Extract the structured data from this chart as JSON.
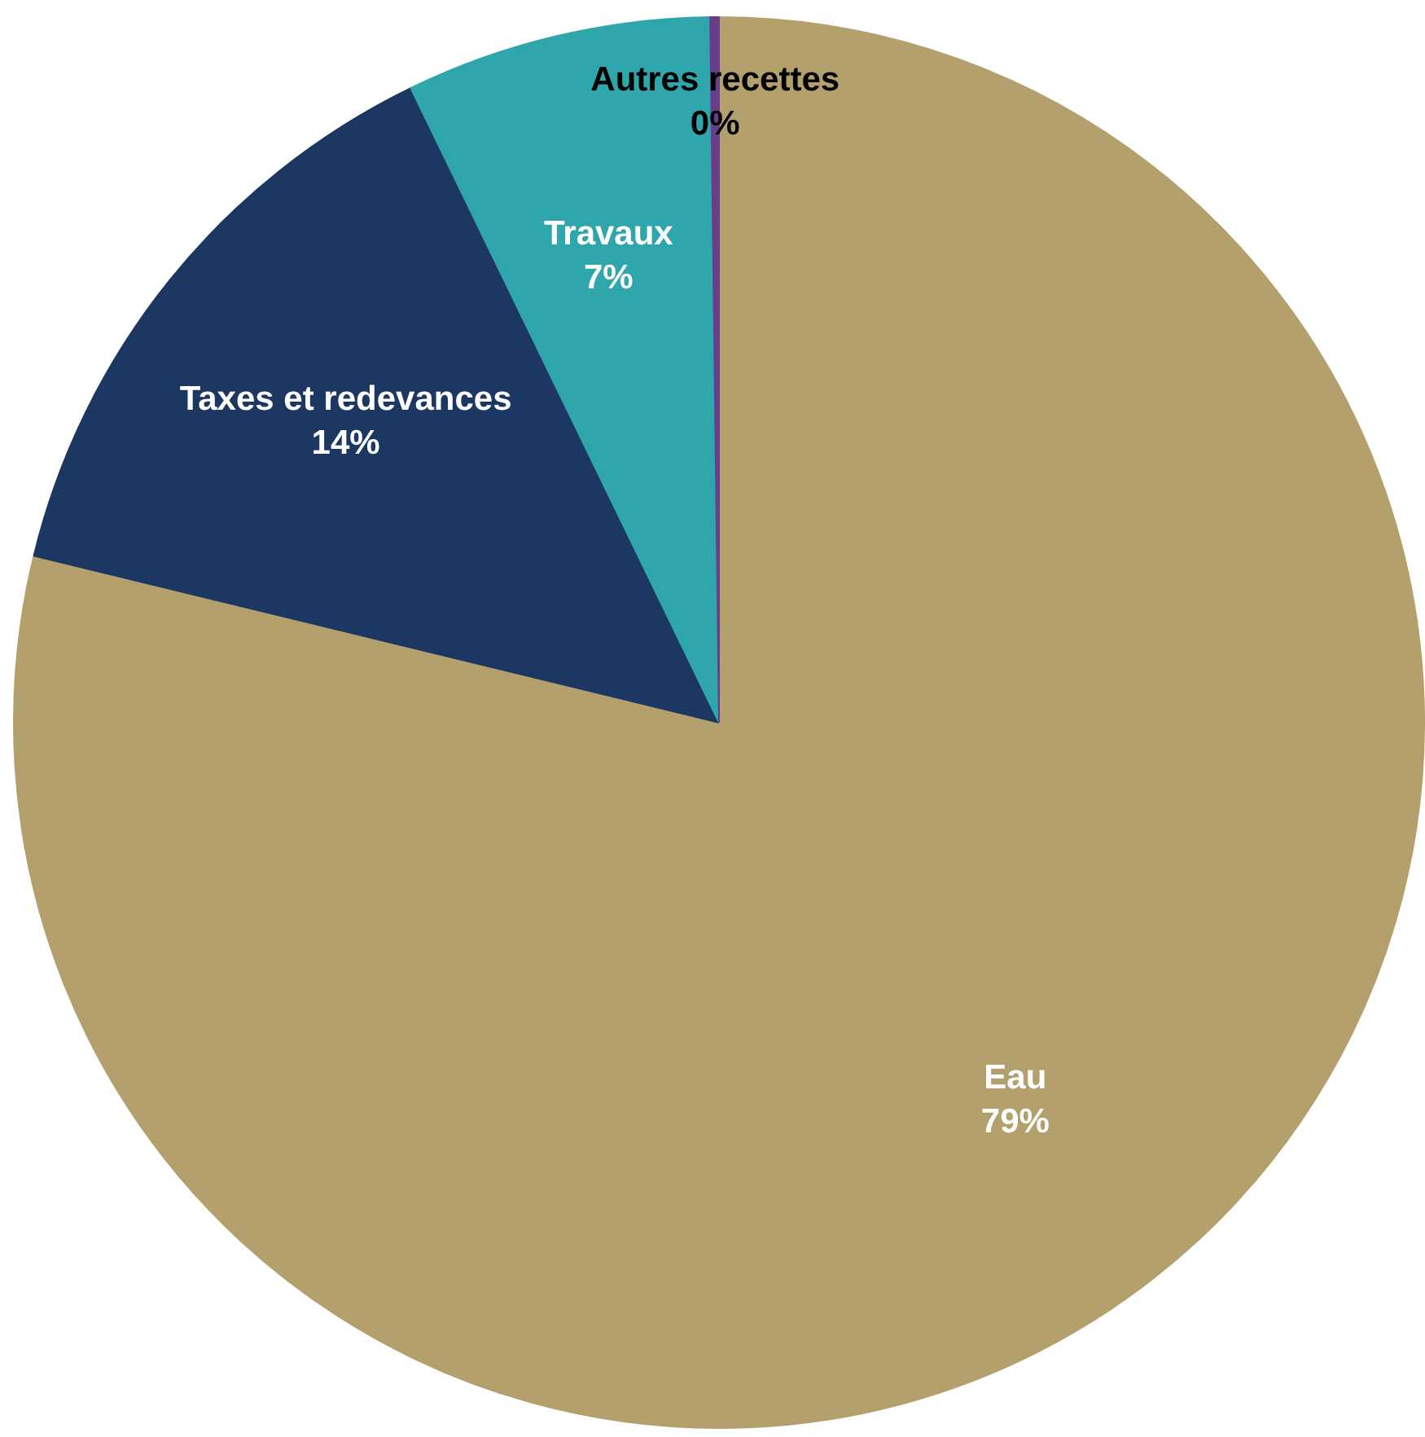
{
  "chart_data": {
    "type": "pie",
    "categories": [
      "Eau",
      "Taxes et redevances",
      "Travaux",
      "Autres recettes"
    ],
    "values": [
      78.8,
      14,
      7,
      0.2
    ],
    "value_labels": [
      "79%",
      "14%",
      "7%",
      "0%"
    ],
    "colors": [
      "#b3a06c",
      "#1c3762",
      "#2fa6ac",
      "#6a3d8a"
    ],
    "legend": false
  }
}
